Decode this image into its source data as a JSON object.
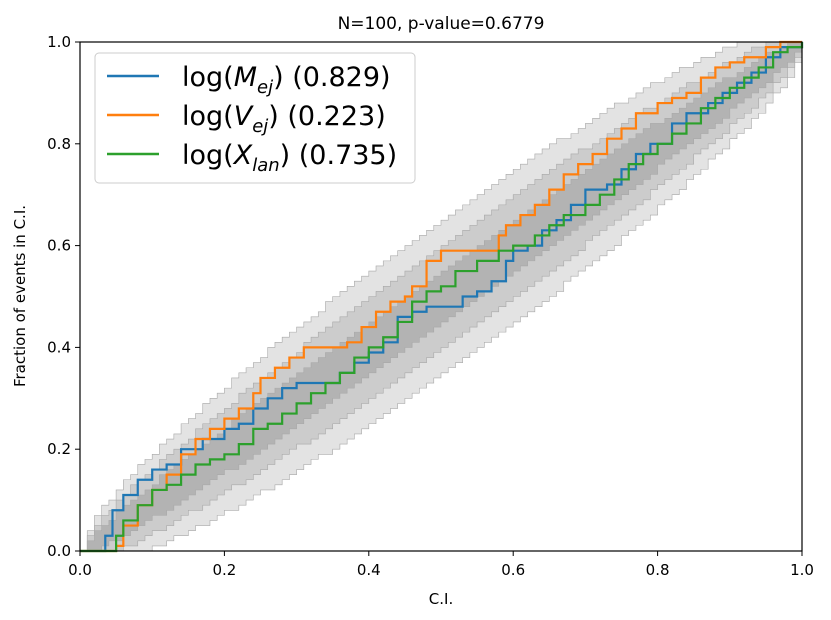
{
  "chart_data": {
    "type": "line",
    "title": "N=100, p-value=0.6779",
    "xlabel": "C.I.",
    "ylabel": "Fraction of events in C.I.",
    "xlim": [
      0,
      1
    ],
    "ylim": [
      0,
      1
    ],
    "xticks": [
      "0.0",
      "0.2",
      "0.4",
      "0.6",
      "0.8",
      "1.0"
    ],
    "yticks": [
      "0.0",
      "0.2",
      "0.4",
      "0.6",
      "0.8",
      "1.0"
    ],
    "legend_position": "top-left",
    "n": 100,
    "confidence_bands": [
      0.68,
      0.95,
      0.997
    ],
    "band_colors": [
      "#b3b3b3",
      "#cccccc",
      "#e3e3e3"
    ],
    "series": [
      {
        "name_base": "log(",
        "name_var": "M",
        "name_sub": "ej",
        "name_close": ")",
        "score": "(0.829)",
        "color": "#1f77b4",
        "points": [
          [
            0,
            0
          ],
          [
            0.02,
            0
          ],
          [
            0.035,
            0.03
          ],
          [
            0.045,
            0.08
          ],
          [
            0.06,
            0.11
          ],
          [
            0.08,
            0.14
          ],
          [
            0.1,
            0.16
          ],
          [
            0.12,
            0.17
          ],
          [
            0.14,
            0.2
          ],
          [
            0.17,
            0.22
          ],
          [
            0.2,
            0.24
          ],
          [
            0.22,
            0.25
          ],
          [
            0.24,
            0.28
          ],
          [
            0.26,
            0.3
          ],
          [
            0.28,
            0.32
          ],
          [
            0.3,
            0.33
          ],
          [
            0.33,
            0.33
          ],
          [
            0.36,
            0.35
          ],
          [
            0.38,
            0.37
          ],
          [
            0.4,
            0.39
          ],
          [
            0.42,
            0.41
          ],
          [
            0.44,
            0.46
          ],
          [
            0.46,
            0.47
          ],
          [
            0.48,
            0.48
          ],
          [
            0.51,
            0.48
          ],
          [
            0.53,
            0.5
          ],
          [
            0.55,
            0.51
          ],
          [
            0.57,
            0.53
          ],
          [
            0.59,
            0.57
          ],
          [
            0.6,
            0.59
          ],
          [
            0.62,
            0.6
          ],
          [
            0.64,
            0.63
          ],
          [
            0.66,
            0.65
          ],
          [
            0.68,
            0.68
          ],
          [
            0.7,
            0.71
          ],
          [
            0.73,
            0.72
          ],
          [
            0.75,
            0.75
          ],
          [
            0.77,
            0.78
          ],
          [
            0.79,
            0.8
          ],
          [
            0.82,
            0.84
          ],
          [
            0.84,
            0.86
          ],
          [
            0.87,
            0.88
          ],
          [
            0.89,
            0.9
          ],
          [
            0.91,
            0.92
          ],
          [
            0.93,
            0.94
          ],
          [
            0.95,
            0.97
          ],
          [
            0.97,
            0.99
          ],
          [
            1.0,
            1.0
          ]
        ]
      },
      {
        "name_base": "log(",
        "name_var": "V",
        "name_sub": "ej",
        "name_close": ")",
        "score": "(0.223)",
        "color": "#ff7f0e",
        "points": [
          [
            0,
            0
          ],
          [
            0.03,
            0
          ],
          [
            0.05,
            0.01
          ],
          [
            0.06,
            0.05
          ],
          [
            0.08,
            0.09
          ],
          [
            0.1,
            0.12
          ],
          [
            0.12,
            0.15
          ],
          [
            0.14,
            0.19
          ],
          [
            0.16,
            0.22
          ],
          [
            0.18,
            0.24
          ],
          [
            0.2,
            0.26
          ],
          [
            0.22,
            0.28
          ],
          [
            0.24,
            0.31
          ],
          [
            0.25,
            0.34
          ],
          [
            0.27,
            0.36
          ],
          [
            0.29,
            0.38
          ],
          [
            0.31,
            0.4
          ],
          [
            0.34,
            0.4
          ],
          [
            0.37,
            0.41
          ],
          [
            0.39,
            0.44
          ],
          [
            0.41,
            0.47
          ],
          [
            0.43,
            0.49
          ],
          [
            0.45,
            0.5
          ],
          [
            0.46,
            0.52
          ],
          [
            0.48,
            0.57
          ],
          [
            0.5,
            0.59
          ],
          [
            0.53,
            0.59
          ],
          [
            0.56,
            0.59
          ],
          [
            0.58,
            0.62
          ],
          [
            0.59,
            0.64
          ],
          [
            0.61,
            0.66
          ],
          [
            0.63,
            0.68
          ],
          [
            0.65,
            0.71
          ],
          [
            0.67,
            0.74
          ],
          [
            0.69,
            0.76
          ],
          [
            0.71,
            0.78
          ],
          [
            0.73,
            0.81
          ],
          [
            0.75,
            0.83
          ],
          [
            0.77,
            0.86
          ],
          [
            0.8,
            0.88
          ],
          [
            0.82,
            0.89
          ],
          [
            0.84,
            0.9
          ],
          [
            0.86,
            0.93
          ],
          [
            0.88,
            0.95
          ],
          [
            0.9,
            0.96
          ],
          [
            0.92,
            0.97
          ],
          [
            0.95,
            0.99
          ],
          [
            0.97,
            1.0
          ],
          [
            1.0,
            1.0
          ]
        ]
      },
      {
        "name_base": "log(",
        "name_var": "X",
        "name_sub": "lan",
        "name_close": ")",
        "score": "(0.735)",
        "color": "#2ca02c",
        "points": [
          [
            0,
            0
          ],
          [
            0.04,
            0
          ],
          [
            0.05,
            0.03
          ],
          [
            0.06,
            0.06
          ],
          [
            0.08,
            0.09
          ],
          [
            0.1,
            0.12
          ],
          [
            0.12,
            0.13
          ],
          [
            0.14,
            0.15
          ],
          [
            0.16,
            0.17
          ],
          [
            0.18,
            0.18
          ],
          [
            0.2,
            0.19
          ],
          [
            0.22,
            0.21
          ],
          [
            0.24,
            0.24
          ],
          [
            0.26,
            0.25
          ],
          [
            0.28,
            0.27
          ],
          [
            0.3,
            0.29
          ],
          [
            0.32,
            0.31
          ],
          [
            0.34,
            0.33
          ],
          [
            0.36,
            0.35
          ],
          [
            0.38,
            0.38
          ],
          [
            0.4,
            0.4
          ],
          [
            0.42,
            0.42
          ],
          [
            0.44,
            0.45
          ],
          [
            0.46,
            0.49
          ],
          [
            0.48,
            0.51
          ],
          [
            0.5,
            0.52
          ],
          [
            0.52,
            0.55
          ],
          [
            0.55,
            0.57
          ],
          [
            0.58,
            0.59
          ],
          [
            0.6,
            0.6
          ],
          [
            0.63,
            0.62
          ],
          [
            0.65,
            0.64
          ],
          [
            0.67,
            0.66
          ],
          [
            0.7,
            0.68
          ],
          [
            0.72,
            0.7
          ],
          [
            0.74,
            0.73
          ],
          [
            0.76,
            0.76
          ],
          [
            0.78,
            0.78
          ],
          [
            0.8,
            0.8
          ],
          [
            0.82,
            0.82
          ],
          [
            0.84,
            0.84
          ],
          [
            0.86,
            0.87
          ],
          [
            0.88,
            0.89
          ],
          [
            0.9,
            0.91
          ],
          [
            0.92,
            0.93
          ],
          [
            0.94,
            0.95
          ],
          [
            0.96,
            0.98
          ],
          [
            0.98,
            0.99
          ],
          [
            1.0,
            1.0
          ]
        ]
      }
    ]
  }
}
